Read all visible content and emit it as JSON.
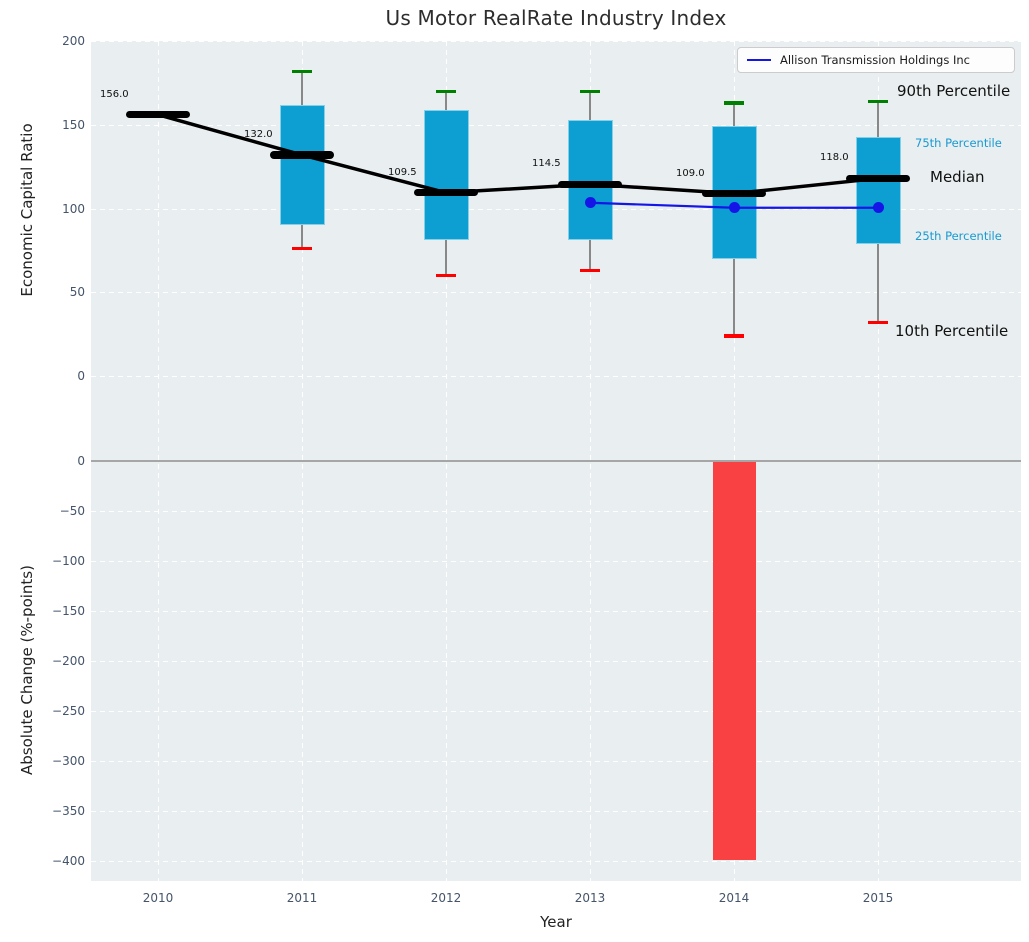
{
  "title": "Us Motor RealRate Industry Index",
  "legend": {
    "label": "Allison Transmission Holdings Inc"
  },
  "annotations": {
    "p90_label": "90th Percentile",
    "p75_label": "75th Percentile",
    "median_label": "Median",
    "p25_label": "25th Percentile",
    "p10_label": "10th Percentile"
  },
  "colors": {
    "box_fill": "#0d9ed2",
    "whisker": "#888888",
    "cap_high": "#008000",
    "cap_low": "#ff0000",
    "median": "#000000",
    "company_line": "#1515e8",
    "change_bar": "#f94144",
    "plot_bg": "#e9eef0",
    "grid": "#ffffff",
    "tick_label": "#44546a",
    "percentile_label_blue": "#189ad2",
    "zero_line": "#a6a6a6"
  },
  "chart_data": {
    "type": "boxplot",
    "categories": [
      "2010",
      "2011",
      "2012",
      "2013",
      "2014",
      "2015"
    ],
    "xlabel": "Year",
    "grid": true,
    "legend_position": "upper right",
    "top_panel": {
      "ylabel": "Economic Capital Ratio",
      "ylim": [
        -50,
        200
      ],
      "yticks": [
        200,
        150,
        100,
        50,
        0
      ],
      "series": [
        {
          "name": "median",
          "values": [
            156.0,
            132.0,
            109.5,
            114.5,
            109.0,
            118.0
          ],
          "labels": [
            "156.0",
            "132.0",
            "109.5",
            "114.5",
            "109.0",
            "118.0"
          ]
        },
        {
          "name": "p90",
          "values": [
            null,
            182,
            170,
            170,
            163,
            164
          ]
        },
        {
          "name": "p75",
          "values": [
            null,
            162,
            159,
            153,
            149,
            143
          ]
        },
        {
          "name": "p25",
          "values": [
            null,
            90,
            81,
            81,
            70,
            79
          ]
        },
        {
          "name": "p10",
          "values": [
            null,
            76,
            60,
            63,
            24,
            32
          ]
        },
        {
          "name": "Allison Transmission Holdings Inc",
          "values": [
            null,
            null,
            null,
            103.5,
            100.5,
            100.5
          ]
        }
      ]
    },
    "bottom_panel": {
      "ylabel": "Absolute Change (%-points)",
      "ylim": [
        -420,
        2
      ],
      "yticks": [
        0,
        -50,
        -100,
        -150,
        -200,
        -250,
        -300,
        -350,
        -400
      ],
      "series": [
        {
          "name": "absolute_change",
          "values": [
            null,
            null,
            null,
            null,
            -398,
            null
          ]
        }
      ]
    }
  }
}
